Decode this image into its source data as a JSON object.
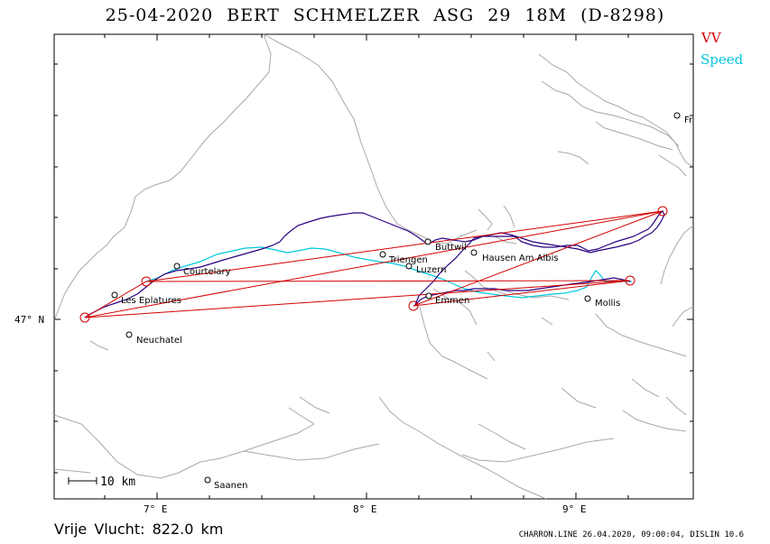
{
  "header": {
    "date": "25-04-2020",
    "pilot": "BERT SCHMELZER",
    "glider": "ASG 29 18M (D-8298)"
  },
  "legend": {
    "vv_label": "VV",
    "vv_color": "#d40000",
    "speed_label": "Speed",
    "speed_color": "#00c8dc"
  },
  "track_color": "#2a0080",
  "map": {
    "scale_label": "10 km",
    "axis_labels": {
      "x": [
        "7° E",
        "8° E",
        "9° E"
      ],
      "y": [
        "47° N"
      ]
    },
    "places": [
      {
        "name": "Courtelary",
        "icon": "town-icon"
      },
      {
        "name": "Les Eplatures",
        "icon": "town-icon"
      },
      {
        "name": "Neuchatel",
        "icon": "town-icon"
      },
      {
        "name": "Saanen",
        "icon": "town-icon"
      },
      {
        "name": "Triengen",
        "icon": "town-icon"
      },
      {
        "name": "Buttwil",
        "icon": "town-icon"
      },
      {
        "name": "Luzern",
        "icon": "town-icon"
      },
      {
        "name": "Hausen Am Albis",
        "icon": "town-icon"
      },
      {
        "name": "Emmen",
        "icon": "town-icon"
      },
      {
        "name": "Mollis",
        "icon": "town-icon"
      },
      {
        "name": "Fr",
        "icon": "town-icon"
      }
    ]
  },
  "footer": {
    "distance_label": "Vrije Vlucht:",
    "distance_value": "822.0 km",
    "credit": "CHARRON.LINE 26.04.2020, 09:00:04, DISLIN 10.6"
  }
}
